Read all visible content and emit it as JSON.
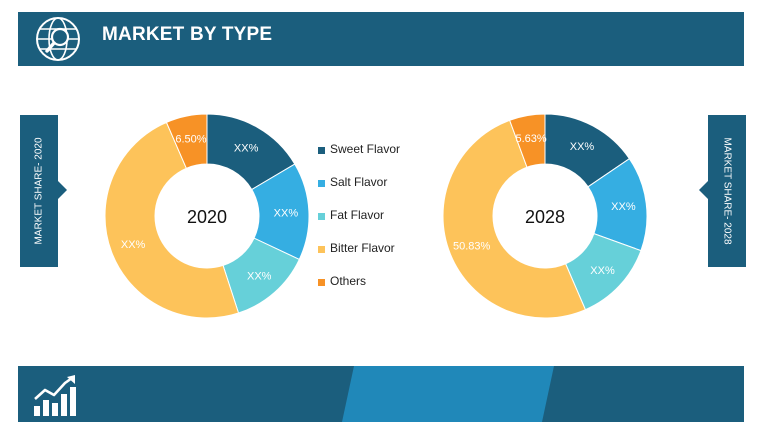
{
  "header": {
    "title": "MARKET BY TYPE"
  },
  "side_labels": {
    "left": "MARKET SHARE- 2020",
    "right": "MARKET SHARE- 2028"
  },
  "colors": {
    "header_bg": "#1b5e7d",
    "footer_accent": "#2088b9"
  },
  "icons": {
    "header": "globe-magnifier-icon",
    "footer": "growth-chart-icon"
  },
  "legend": [
    {
      "label": "Sweet Flavor",
      "color": "#1b5e7d"
    },
    {
      "label": "Salt Flavor",
      "color": "#35aee2"
    },
    {
      "label": "Fat Flavor",
      "color": "#66d0d9"
    },
    {
      "label": "Bitter Flavor",
      "color": "#fdc35a"
    },
    {
      "label": "Others",
      "color": "#f79226"
    }
  ],
  "chart_data": [
    {
      "type": "pie",
      "center_label": "2020",
      "categories": [
        "Sweet Flavor",
        "Salt Flavor",
        "Fat Flavor",
        "Bitter Flavor",
        "Others"
      ],
      "values": [
        16.5,
        15.5,
        13.0,
        48.5,
        6.5
      ],
      "labels": [
        "XX%",
        "XX%",
        "XX%",
        "XX%",
        "6.50%"
      ]
    },
    {
      "type": "pie",
      "center_label": "2028",
      "categories": [
        "Sweet Flavor",
        "Salt Flavor",
        "Fat Flavor",
        "Bitter Flavor",
        "Others"
      ],
      "values": [
        15.5,
        15.0,
        13.0,
        50.83,
        5.63
      ],
      "labels": [
        "XX%",
        "XX%",
        "XX%",
        "50.83%",
        "5.63%"
      ]
    }
  ]
}
